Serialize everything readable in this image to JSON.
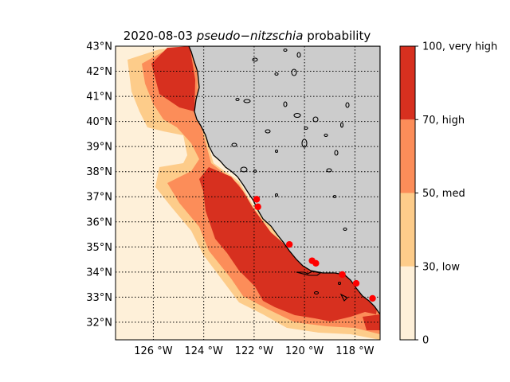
{
  "chart_data": {
    "type": "heatmap",
    "title": {
      "date": "2020-08-03",
      "species": "pseudo−nitzschia",
      "suffix": "probability"
    },
    "xlim": [
      -127.5,
      -117.0
    ],
    "ylim": [
      31.3,
      43.0
    ],
    "x_ticks": [
      {
        "value": -126,
        "label": "126$^\\circ$W"
      },
      {
        "value": -124,
        "label": "124$^\\circ$W"
      },
      {
        "value": -122,
        "label": "122$^\\circ$W"
      },
      {
        "value": -120,
        "label": "120$^\\circ$W"
      },
      {
        "value": -118,
        "label": "118$^\\circ$W"
      }
    ],
    "x_tick_text": [
      "126 °W",
      "124 °W",
      "122 °W",
      "120 °W",
      "118 °W"
    ],
    "y_ticks": [
      {
        "value": 32,
        "label": "32°N"
      },
      {
        "value": 33,
        "label": "33°N"
      },
      {
        "value": 34,
        "label": "34°N"
      },
      {
        "value": 35,
        "label": "35°N"
      },
      {
        "value": 36,
        "label": "36°N"
      },
      {
        "value": 37,
        "label": "37°N"
      },
      {
        "value": 38,
        "label": "38°N"
      },
      {
        "value": 39,
        "label": "39°N"
      },
      {
        "value": 40,
        "label": "40°N"
      },
      {
        "value": 41,
        "label": "41°N"
      },
      {
        "value": 42,
        "label": "42°N"
      },
      {
        "value": 43,
        "label": "43°N"
      }
    ],
    "grid": true,
    "land_color": "#cccccc",
    "colorbar": {
      "levels": [
        0,
        30,
        50,
        70,
        100
      ],
      "labels": [
        "0",
        "30, low",
        "50, med",
        "70, high",
        "100, very high"
      ],
      "colors": [
        "#fef0d9",
        "#fdcc8a",
        "#fc8d59",
        "#d7301f"
      ]
    },
    "observation_color": "#ff0000",
    "observations": [
      {
        "lon": -121.9,
        "lat": 36.9
      },
      {
        "lon": -121.85,
        "lat": 36.6
      },
      {
        "lon": -120.6,
        "lat": 35.1
      },
      {
        "lon": -119.7,
        "lat": 34.45
      },
      {
        "lon": -119.55,
        "lat": 34.35
      },
      {
        "lon": -118.5,
        "lat": 33.9
      },
      {
        "lon": -117.95,
        "lat": 33.55
      },
      {
        "lon": -117.3,
        "lat": 32.95
      }
    ]
  }
}
